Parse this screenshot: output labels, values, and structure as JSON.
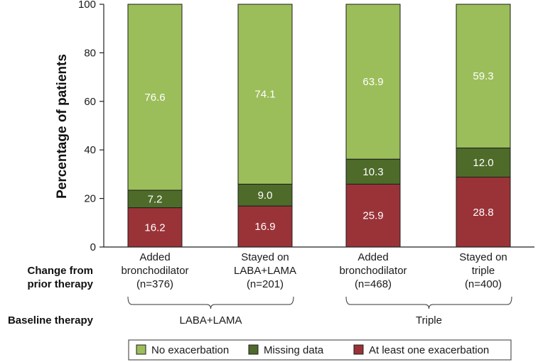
{
  "chart_data": {
    "type": "bar",
    "stacked": true,
    "title": "",
    "xlabel": "",
    "ylabel": "Percentage of patients",
    "ylim": [
      0,
      100
    ],
    "yticks": [
      0,
      20,
      40,
      60,
      80,
      100
    ],
    "categories": [
      [
        "Added",
        "bronchodilator",
        "(n=376)"
      ],
      [
        "Stayed on",
        "LABA+LAMA",
        "(n=201)"
      ],
      [
        "Added",
        "bronchodilator",
        "(n=468)"
      ],
      [
        "Stayed on",
        "triple",
        "(n=400)"
      ]
    ],
    "series": [
      {
        "name": "At least one exacerbation",
        "color": "#9a3338",
        "values": [
          16.2,
          16.9,
          25.9,
          28.8
        ],
        "labels": [
          "16.2",
          "16.9",
          "25.9",
          "28.8"
        ]
      },
      {
        "name": "Missing data",
        "color": "#4e6b2a",
        "values": [
          7.2,
          9.0,
          10.3,
          12.0
        ],
        "labels": [
          "7.2",
          "9.0",
          "10.3",
          "12.0"
        ]
      },
      {
        "name": "No exacerbation",
        "color": "#9cbe5a",
        "values": [
          76.6,
          74.1,
          63.9,
          59.3
        ],
        "labels": [
          "76.6",
          "74.1",
          "63.9",
          "59.3"
        ]
      }
    ],
    "legend_order": [
      "No exacerbation",
      "Missing data",
      "At least one exacerbation"
    ],
    "row_label_lines": [
      "Change from",
      "prior therapy"
    ],
    "baseline_label": "Baseline therapy",
    "groups": [
      {
        "label": "LABA+LAMA",
        "categories": [
          0,
          1
        ]
      },
      {
        "label": "Triple",
        "categories": [
          2,
          3
        ]
      }
    ],
    "legend_position": "bottom"
  }
}
